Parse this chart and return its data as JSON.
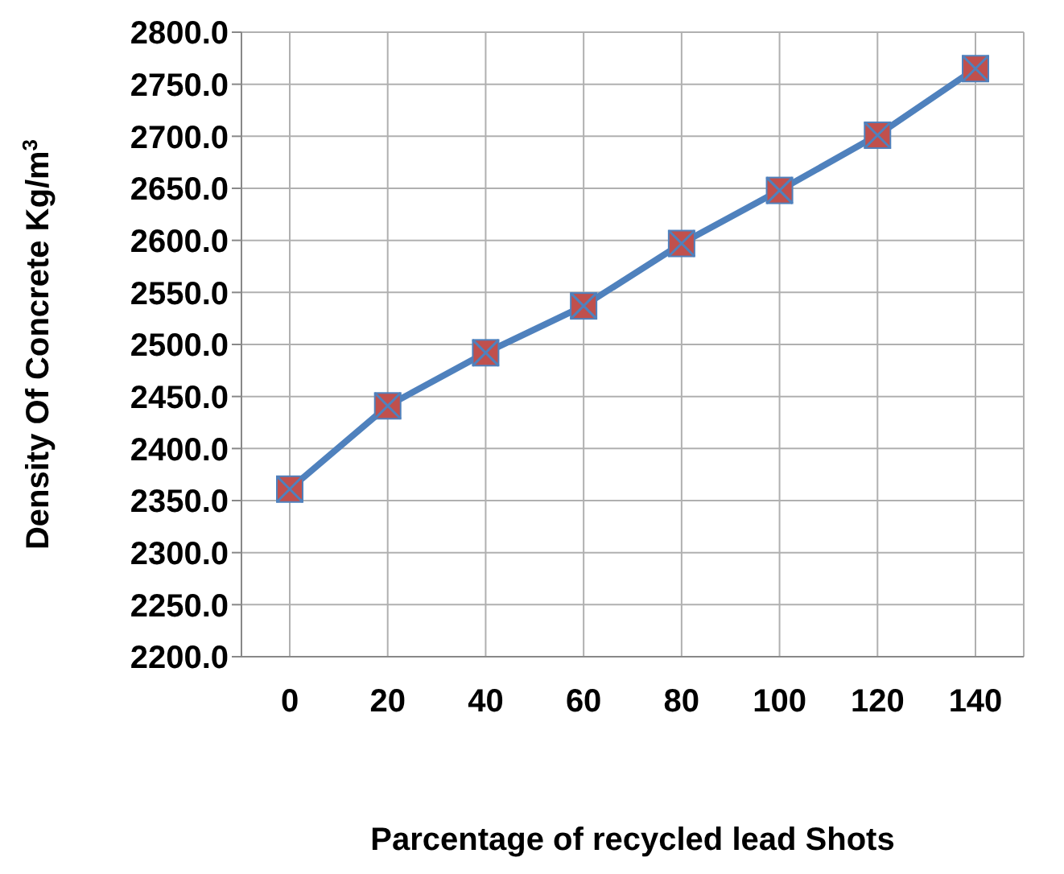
{
  "chart_data": {
    "type": "line",
    "xlabel": "Parcentage of recycled lead Shots",
    "ylabel": "Density Of Concrete Kg/m$^{3}$",
    "categories": [
      "0",
      "20",
      "40",
      "60",
      "80",
      "100",
      "120",
      "140"
    ],
    "series": [
      {
        "color": "#4f81bd",
        "values": [
          2361,
          2441,
          2492,
          2537,
          2597,
          2648,
          2701,
          2765
        ]
      }
    ],
    "ylim": [
      2200,
      2800
    ],
    "yticks": [
      {
        "value": 2200,
        "label": "2200.0"
      },
      {
        "value": 2250,
        "label": "2250.0"
      },
      {
        "value": 2300,
        "label": "2300.0"
      },
      {
        "value": 2350,
        "label": "2350.0"
      },
      {
        "value": 2400,
        "label": "2400.0"
      },
      {
        "value": 2450,
        "label": "2450.0"
      },
      {
        "value": 2500,
        "label": "2500.0"
      },
      {
        "value": 2550,
        "label": "2550.0"
      },
      {
        "value": 2600,
        "label": "2600.0"
      },
      {
        "value": 2650,
        "label": "2650.0"
      },
      {
        "value": 2700,
        "label": "2700.0"
      },
      {
        "value": 2750,
        "label": "2750.0"
      },
      {
        "value": 2800,
        "label": "2800.0"
      }
    ],
    "grid": true,
    "marker": "square",
    "line_style": "solid"
  }
}
